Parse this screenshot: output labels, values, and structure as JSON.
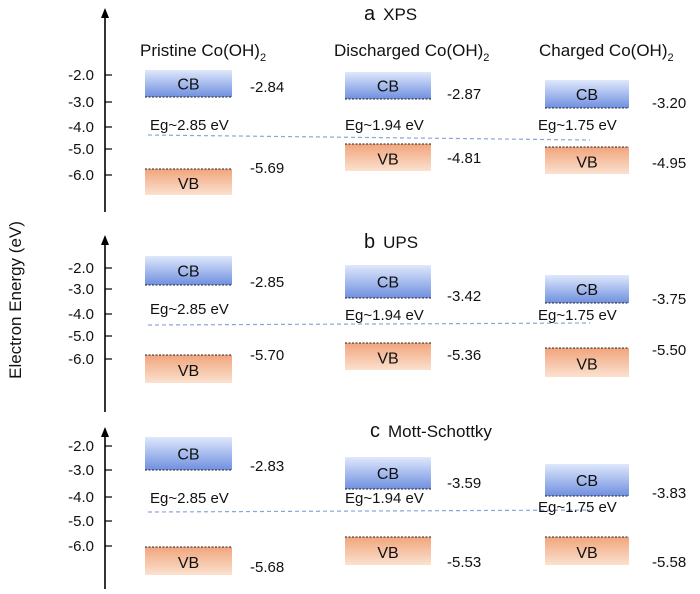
{
  "columns": [
    {
      "name": "Pristine Co(OH)",
      "sub": "2"
    },
    {
      "name": "Discharged Co(OH)",
      "sub": "2"
    },
    {
      "name": "Charged Co(OH)",
      "sub": "2"
    }
  ],
  "y_axis_label": "Electron Energy (eV)",
  "tick_labels": [
    "-2.0",
    "-3.0",
    "-4.0",
    "-5.0",
    "-6.0"
  ],
  "band_labels": {
    "cb": "CB",
    "vb": "VB"
  },
  "colors": {
    "cb": "#6f8fe0",
    "vb": "#f3a277",
    "fermi_line": "#8aa6d8",
    "axis": "#000000"
  },
  "panels": [
    {
      "letter": "a",
      "title": "XPS",
      "rows": [
        {
          "cb_value": "-2.84",
          "vb_value": "-5.69",
          "eg": "Eg~2.85 eV"
        },
        {
          "cb_value": "-2.87",
          "vb_value": "-4.81",
          "eg": "Eg~1.94 eV"
        },
        {
          "cb_value": "-3.20",
          "vb_value": "-4.95",
          "eg": "Eg~1.75 eV"
        }
      ]
    },
    {
      "letter": "b",
      "title": "UPS",
      "rows": [
        {
          "cb_value": "-2.85",
          "vb_value": "-5.70",
          "eg": "Eg~2.85 eV"
        },
        {
          "cb_value": "-3.42",
          "vb_value": "-5.36",
          "eg": "Eg~1.94 eV"
        },
        {
          "cb_value": "-3.75",
          "vb_value": "-5.50",
          "eg": "Eg~1.75 eV"
        }
      ]
    },
    {
      "letter": "c",
      "title": "Mott-Schottky",
      "rows": [
        {
          "cb_value": "-2.83",
          "vb_value": "-5.68",
          "eg": "Eg~2.85 eV"
        },
        {
          "cb_value": "-3.59",
          "vb_value": "-5.53",
          "eg": "Eg~1.94 eV"
        },
        {
          "cb_value": "-3.83",
          "vb_value": "-5.58",
          "eg": "Eg~1.75 eV"
        }
      ]
    }
  ]
}
